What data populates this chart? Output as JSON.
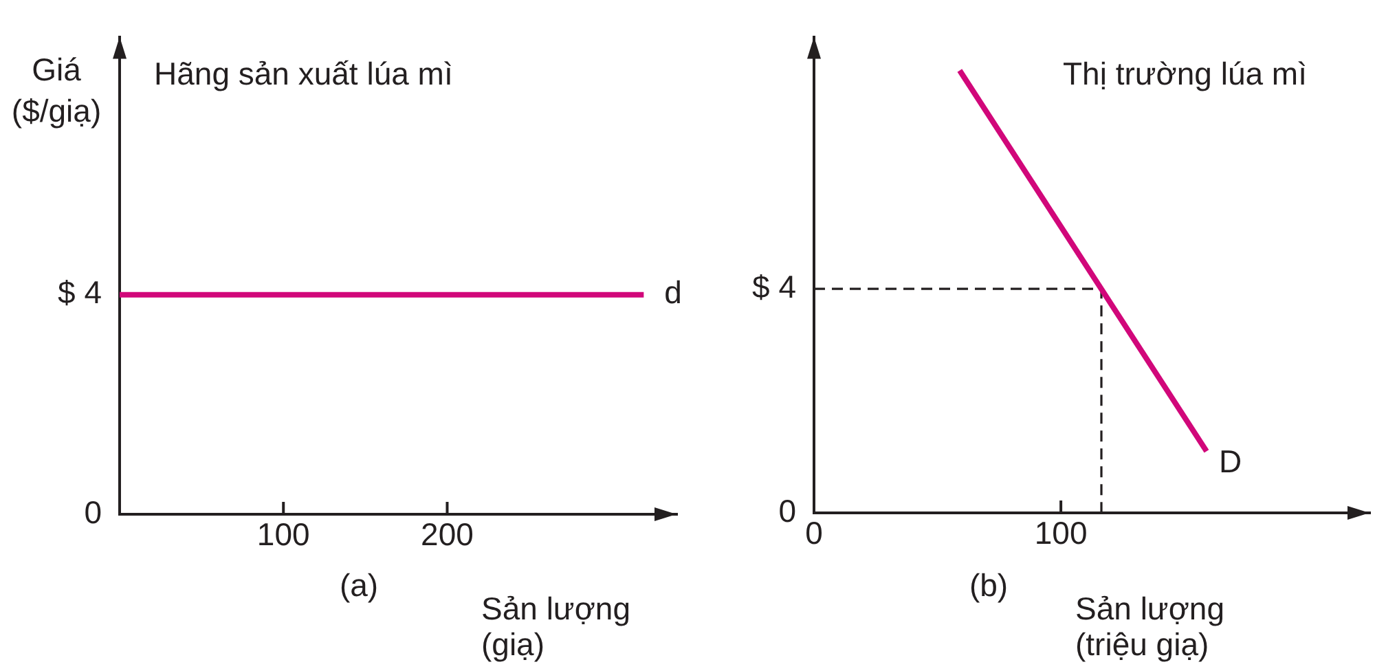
{
  "chart_data": [
    {
      "type": "line",
      "title": "Hãng sản xuất lúa mì",
      "ylabel": "Giá\n($/giạ)",
      "xlabel": "Sản lượng\n(giạ)",
      "x": [
        0,
        320
      ],
      "series": [
        {
          "name": "d",
          "color": "#d1077a",
          "values": [
            4,
            4
          ]
        }
      ],
      "xlim": [
        0,
        340
      ],
      "ylim": [
        0,
        8.7
      ],
      "xticks": [
        100,
        200
      ],
      "yticks": [
        0,
        {
          "value": 4,
          "label": "$ 4"
        }
      ],
      "annotations": [
        "(a)"
      ],
      "marker": "none"
    },
    {
      "type": "line",
      "title": "Thị trường lúa mì",
      "xlabel": "Sản lượng\n(triệu giạ)",
      "series": [
        {
          "name": "D",
          "color": "#d1077a",
          "x": [
            59,
            159
          ],
          "values": [
            7.9,
            1.1
          ]
        },
        {
          "color": "#231f20",
          "x": [
            0,
            116.4,
            116.4
          ],
          "values": [
            4,
            4,
            0
          ],
          "line_style": "dashed"
        }
      ],
      "xlim": [
        0,
        225
      ],
      "ylim": [
        0,
        8.5
      ],
      "xticks": [
        0,
        100
      ],
      "yticks": [
        0,
        {
          "value": 4,
          "label": "$ 4"
        }
      ],
      "annotations": [
        "(b)"
      ],
      "marker": "none"
    }
  ]
}
